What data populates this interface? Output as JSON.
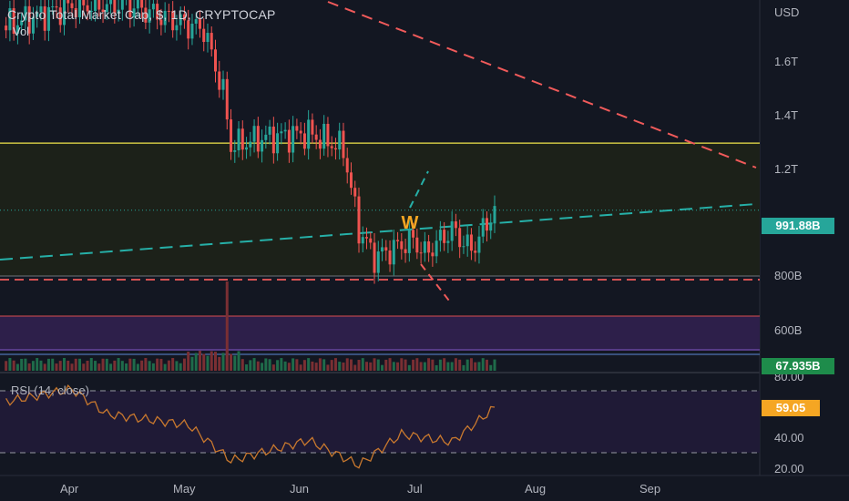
{
  "legend": {
    "title": "Crypto Total Market Cap, $, 1D, CRYPTOCAP",
    "vol_label": "Vol",
    "rsi_label": "RSI (14, close)"
  },
  "price_axis": {
    "currency": "USD",
    "ticks": [
      "1.6T",
      "1.4T",
      "1.2T",
      "800B",
      "600B"
    ]
  },
  "rsi_axis": {
    "ticks": [
      "80.00",
      "40.00",
      "20.00"
    ]
  },
  "time_axis": {
    "labels": [
      "Apr",
      "May",
      "Jun",
      "Jul",
      "Aug",
      "Sep"
    ]
  },
  "badges": {
    "price": "991.88B",
    "volume": "67.935B",
    "rsi": "59.05"
  },
  "annotation": {
    "pattern_label": "W"
  },
  "colors": {
    "background": "#131722",
    "up": "#26a69a",
    "down": "#ef5350",
    "price_badge": "#26a69a",
    "volume_badge": "#1e8c4b",
    "rsi_badge": "#f5a623",
    "resistance": "#f0e54a",
    "rsi_line": "#c8782e",
    "trend_down": "#f05a5a",
    "trend_up": "#26b0a8"
  },
  "chart_data": {
    "type": "candlestick",
    "title": "Crypto Total Market Cap, $, 1D, CRYPTOCAP",
    "ylabel": "USD",
    "yscale": "log",
    "price_close_path": [
      {
        "t": "Mar 15",
        "v": 1800000000000.0
      },
      {
        "t": "Apr 1",
        "v": 1920000000000.0
      },
      {
        "t": "Apr 15",
        "v": 1930000000000.0
      },
      {
        "t": "May 1",
        "v": 1800000000000.0
      },
      {
        "t": "May 5",
        "v": 1780000000000.0
      },
      {
        "t": "May 10",
        "v": 1450000000000.0
      },
      {
        "t": "May 12",
        "v": 1220000000000.0
      },
      {
        "t": "May 20",
        "v": 1250000000000.0
      },
      {
        "t": "Jun 1",
        "v": 1270000000000.0
      },
      {
        "t": "Jun 10",
        "v": 1210000000000.0
      },
      {
        "t": "Jun 14",
        "v": 930000000000.0
      },
      {
        "t": "Jun 18",
        "v": 850000000000.0
      },
      {
        "t": "Jun 28",
        "v": 900000000000.0
      },
      {
        "t": "Jul 1",
        "v": 860000000000.0
      },
      {
        "t": "Jul 8",
        "v": 930000000000.0
      },
      {
        "t": "Jul 13",
        "v": 870000000000.0
      },
      {
        "t": "Jul 19",
        "v": 990000000000.0
      }
    ],
    "last_price": "991.88B",
    "horizontal_levels": [
      {
        "value": 1230000000000.0,
        "style": "solid",
        "color": "#f0e54a"
      },
      {
        "value": 800000000000.0,
        "style": "dashed",
        "color": "#f05a5a"
      }
    ],
    "rsi": {
      "period": 14,
      "last": 59.05,
      "bands": [
        30,
        70
      ],
      "path": [
        {
          "t": "Mar 15",
          "v": 63
        },
        {
          "t": "Apr 1",
          "v": 71
        },
        {
          "t": "Apr 10",
          "v": 55
        },
        {
          "t": "May 1",
          "v": 48
        },
        {
          "t": "May 12",
          "v": 25
        },
        {
          "t": "Jun 1",
          "v": 38
        },
        {
          "t": "Jun 14",
          "v": 22
        },
        {
          "t": "Jun 25",
          "v": 42
        },
        {
          "t": "Jul 8",
          "v": 37
        },
        {
          "t": "Jul 19",
          "v": 59
        }
      ]
    },
    "volume_last": "67.935B",
    "x_labels": [
      "Apr",
      "May",
      "Jun",
      "Jul",
      "Aug",
      "Sep"
    ]
  }
}
